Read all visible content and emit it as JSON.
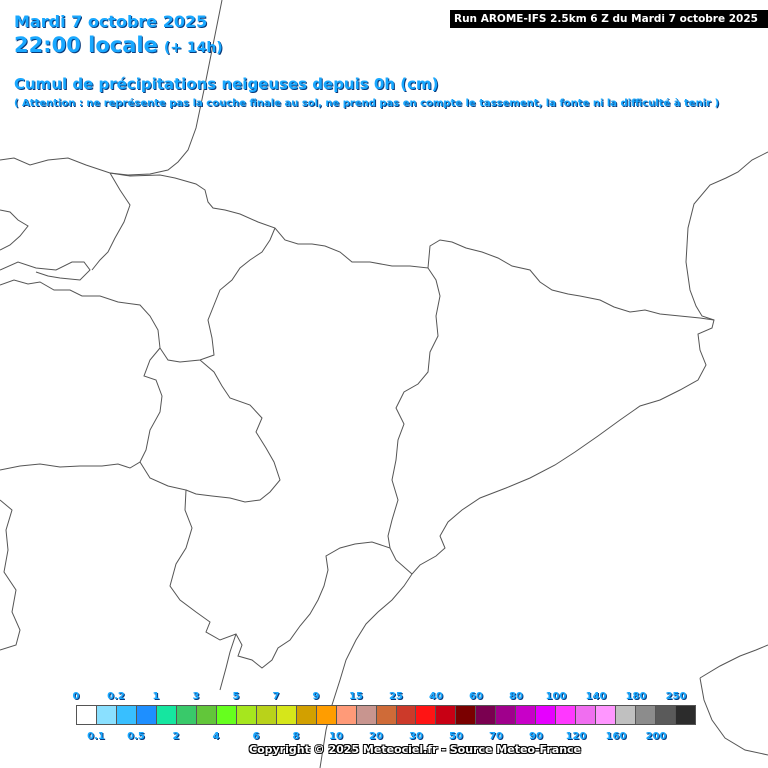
{
  "header": {
    "date": "Mardi 7 octobre 2025",
    "time": "22:00 locale",
    "offset": "(+ 14h)",
    "title": "Cumul de précipitations neigeuses depuis 0h (cm)",
    "note": "( Attention : ne représente pas la couche finale au sol, ne prend pas en compte le tassement, la fonte ni la difficulté à tenir )",
    "run": "Run AROME-IFS 2.5km 6 Z du Mardi 7 octobre 2025"
  },
  "legend": {
    "swatches": [
      "#ffffff",
      "#8ae0ff",
      "#38bfff",
      "#1e8fff",
      "#15e6a0",
      "#39c96a",
      "#62c63a",
      "#66ff1e",
      "#a6e61e",
      "#b9d21a",
      "#d6e61a",
      "#d2a000",
      "#ff9d00",
      "#ff9a78",
      "#c8958f",
      "#cf6b38",
      "#cc3a2a",
      "#ff1414",
      "#c80014",
      "#7a0000",
      "#7a0050",
      "#a0008c",
      "#c800c8",
      "#e600ff",
      "#ff38ff",
      "#f06ef0",
      "#ff96ff",
      "#c0c0c0",
      "#8c8c8c",
      "#5a5a5a",
      "#2c2c2c"
    ],
    "top_labels": [
      "0",
      "0.2",
      "1",
      "3",
      "5",
      "7",
      "9",
      "15",
      "25",
      "40",
      "60",
      "80",
      "100",
      "140",
      "180",
      "250"
    ],
    "bottom_labels": [
      "0.1",
      "0.5",
      "2",
      "4",
      "6",
      "8",
      "10",
      "20",
      "30",
      "50",
      "70",
      "90",
      "120",
      "160",
      "200"
    ]
  },
  "footer": {
    "copyright": "Copyright © 2025 Meteociel.fr - Source Meteo-France"
  }
}
